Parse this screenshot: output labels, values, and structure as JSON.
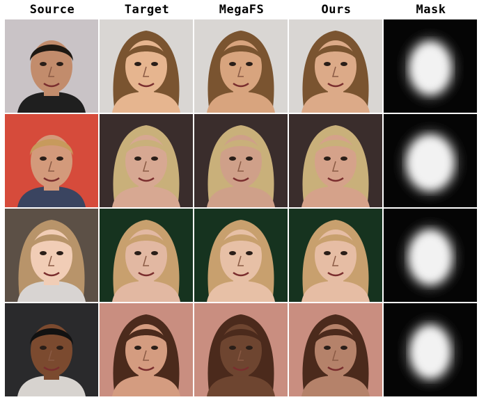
{
  "columns": [
    {
      "label": "Source"
    },
    {
      "label": "Target"
    },
    {
      "label": "MegaFS"
    },
    {
      "label": "Ours"
    },
    {
      "label": "Mask"
    }
  ],
  "rows": [
    {
      "source": {
        "bg": "#c9c3c6",
        "skin": "#c28c6c",
        "hair": "#1e1812",
        "shirt": "#1f1f1f"
      },
      "target": {
        "bg": "#d9d6d3",
        "skin": "#e6b58f",
        "hair": "#7a5430"
      },
      "megafs": {
        "skin": "#d8a47e",
        "hair": "#7a5430"
      },
      "ours": {
        "skin": "#dcaa88",
        "hair": "#7a5430"
      },
      "mask": {
        "blob_rx": 30,
        "blob_ry": 38
      }
    },
    {
      "source": {
        "bg": "#d64b3b",
        "skin": "#d39a7b",
        "hair": "#c79a5c",
        "shirt": "#3a4460"
      },
      "target": {
        "bg": "#3a2d2c",
        "skin": "#d7a892",
        "hair": "#c9b07a"
      },
      "megafs": {
        "skin": "#cfa089",
        "hair": "#c9b07a"
      },
      "ours": {
        "skin": "#d5a28a",
        "hair": "#c9b07a"
      },
      "mask": {
        "blob_rx": 34,
        "blob_ry": 40
      }
    },
    {
      "source": {
        "bg": "#5c5046",
        "skin": "#f1cdb6",
        "hair": "#b8946a",
        "shirt": "#d8d4d2"
      },
      "target": {
        "bg": "#16331f",
        "skin": "#e2b8a2",
        "hair": "#c8a06e"
      },
      "megafs": {
        "skin": "#e7c0a6",
        "hair": "#c8a06e"
      },
      "ours": {
        "skin": "#e6bda4",
        "hair": "#c8a06e"
      },
      "mask": {
        "blob_rx": 31,
        "blob_ry": 39
      }
    },
    {
      "source": {
        "bg": "#2a2a2c",
        "skin": "#7b4a2f",
        "hair": "#111111",
        "shirt": "#d7d3cf"
      },
      "target": {
        "bg": "#c98e80",
        "skin": "#d49c80",
        "hair": "#4b2a1c"
      },
      "megafs": {
        "skin": "#6e4530",
        "hair": "#4b2a1c"
      },
      "ours": {
        "skin": "#b5826a",
        "hair": "#4b2a1c"
      },
      "mask": {
        "blob_rx": 29,
        "blob_ry": 38
      }
    }
  ]
}
